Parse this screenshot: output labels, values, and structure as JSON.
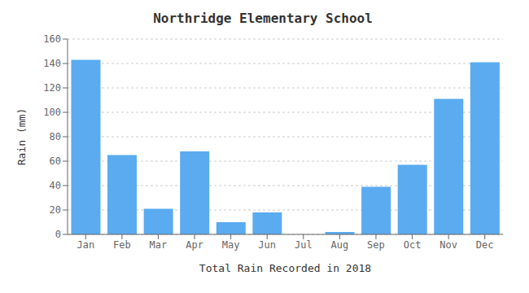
{
  "chart_data": {
    "type": "bar",
    "title": "Northridge Elementary School",
    "xlabel": "Total Rain Recorded in 2018",
    "ylabel": "Rain (mm)",
    "categories": [
      "Jan",
      "Feb",
      "Mar",
      "Apr",
      "May",
      "Jun",
      "Jul",
      "Aug",
      "Sep",
      "Oct",
      "Nov",
      "Dec"
    ],
    "values": [
      143,
      65,
      21,
      68,
      10,
      18,
      0,
      2,
      39,
      57,
      111,
      141
    ],
    "color": "#5aabf0",
    "ylim": [
      0,
      160
    ],
    "yticks": [
      0,
      20,
      40,
      60,
      80,
      100,
      120,
      140,
      160
    ],
    "grid": true
  }
}
